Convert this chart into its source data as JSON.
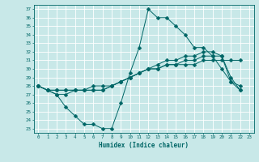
{
  "title": "",
  "xlabel": "Humidex (Indice chaleur)",
  "ylabel": "",
  "bg_color": "#c8e8e8",
  "line_color": "#006666",
  "grid_color": "#ffffff",
  "xlim": [
    -0.5,
    23.5
  ],
  "ylim": [
    22.5,
    37.5
  ],
  "yticks": [
    23,
    24,
    25,
    26,
    27,
    28,
    29,
    30,
    31,
    32,
    33,
    34,
    35,
    36,
    37
  ],
  "xticks": [
    0,
    1,
    2,
    3,
    4,
    5,
    6,
    7,
    8,
    9,
    10,
    11,
    12,
    13,
    14,
    15,
    16,
    17,
    18,
    19,
    20,
    21,
    22,
    23
  ],
  "series": [
    [
      28,
      27.5,
      27,
      25.5,
      24.5,
      23.5,
      23.5,
      23,
      23,
      26,
      29.5,
      32.5,
      37,
      36,
      36,
      35,
      34,
      32.5,
      32.5,
      31.5,
      30,
      28.5,
      28
    ],
    [
      28,
      27.5,
      27,
      27,
      27.5,
      27.5,
      27.5,
      27.5,
      28,
      28.5,
      29,
      29.5,
      30,
      30,
      30.5,
      30.5,
      30.5,
      30.5,
      31,
      31,
      31,
      31,
      31
    ],
    [
      28,
      27.5,
      27.5,
      27.5,
      27.5,
      27.5,
      28,
      28,
      28,
      28.5,
      29,
      29.5,
      30,
      30.5,
      31,
      31,
      31.5,
      31.5,
      32,
      32,
      31.5,
      28.5,
      27.5
    ],
    [
      28,
      27.5,
      27.5,
      27.5,
      27.5,
      27.5,
      27.5,
      27.5,
      28,
      28.5,
      29,
      29.5,
      30,
      30,
      30.5,
      30.5,
      31,
      31,
      31.5,
      31.5,
      31.5,
      29,
      27.5
    ]
  ],
  "marker_size": 2.5,
  "linewidth": 0.7
}
